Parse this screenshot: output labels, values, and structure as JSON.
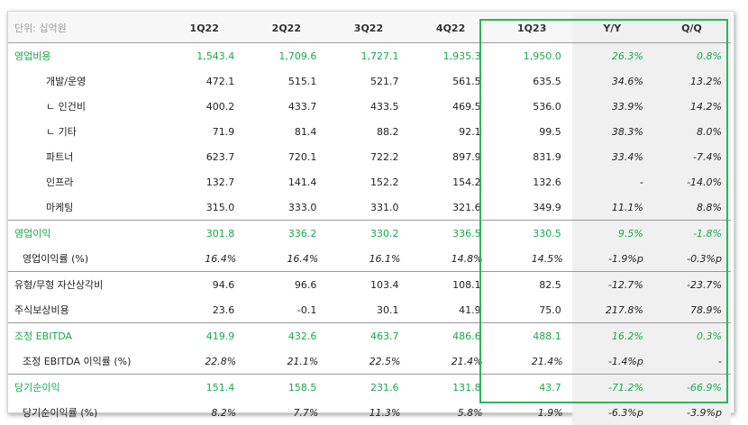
{
  "table": {
    "unit_label": "단위: 십억원",
    "columns": [
      "1Q22",
      "2Q22",
      "3Q22",
      "4Q22",
      "1Q23",
      "Y/Y",
      "Q/Q"
    ],
    "rows": [
      {
        "label": "영업비용",
        "values": [
          "1,543.4",
          "1,709.6",
          "1,727.1",
          "1,935.3",
          "1,950.0",
          "26.3%",
          "0.8%"
        ]
      },
      {
        "label": "개발/운영",
        "values": [
          "472.1",
          "515.1",
          "521.7",
          "561.5",
          "635.5",
          "34.6%",
          "13.2%"
        ]
      },
      {
        "label": "ㄴ 인건비",
        "values": [
          "400.2",
          "433.7",
          "433.5",
          "469.5",
          "536.0",
          "33.9%",
          "14.2%"
        ]
      },
      {
        "label": "ㄴ 기타",
        "values": [
          "71.9",
          "81.4",
          "88.2",
          "92.1",
          "99.5",
          "38.3%",
          "8.0%"
        ]
      },
      {
        "label": "파트너",
        "values": [
          "623.7",
          "720.1",
          "722.2",
          "897.9",
          "831.9",
          "33.4%",
          "-7.4%"
        ]
      },
      {
        "label": "인프라",
        "values": [
          "132.7",
          "141.4",
          "152.2",
          "154.2",
          "132.6",
          "-",
          "-14.0%"
        ]
      },
      {
        "label": "마케팅",
        "values": [
          "315.0",
          "333.0",
          "331.0",
          "321.6",
          "349.9",
          "11.1%",
          "8.8%"
        ]
      },
      {
        "label": "영업이익",
        "values": [
          "301.8",
          "336.2",
          "330.2",
          "336.5",
          "330.5",
          "9.5%",
          "-1.8%"
        ]
      },
      {
        "label": "영업이익률 (%)",
        "values": [
          "16.4%",
          "16.4%",
          "16.1%",
          "14.8%",
          "14.5%",
          "-1.9%p",
          "-0.3%p"
        ]
      },
      {
        "label": "유형/무형 자산상각비",
        "values": [
          "94.6",
          "96.6",
          "103.4",
          "108.1",
          "82.5",
          "-12.7%",
          "-23.7%"
        ]
      },
      {
        "label": "주식보상비용",
        "values": [
          "23.6",
          "-0.1",
          "30.1",
          "41.9",
          "75.0",
          "217.8%",
          "78.9%"
        ]
      },
      {
        "label": "조정 EBITDA",
        "values": [
          "419.9",
          "432.6",
          "463.7",
          "486.6",
          "488.1",
          "16.2%",
          "0.3%"
        ]
      },
      {
        "label": "조정 EBITDA 이익률 (%)",
        "values": [
          "22.8%",
          "21.1%",
          "22.5%",
          "21.4%",
          "21.4%",
          "-1.4%p",
          "-"
        ]
      },
      {
        "label": "당기순이익",
        "values": [
          "151.4",
          "158.5",
          "231.6",
          "131.8",
          "43.7",
          "-71.2%",
          "-66.9%"
        ]
      },
      {
        "label": "당기순이익률 (%)",
        "values": [
          "8.2%",
          "7.7%",
          "11.3%",
          "5.8%",
          "1.9%",
          "-6.3%p",
          "-3.9%p"
        ]
      }
    ]
  },
  "colors": {
    "accent_green": "#1aa84a",
    "highlight_border": "#2db35a",
    "shade": "#f0f0f0"
  }
}
